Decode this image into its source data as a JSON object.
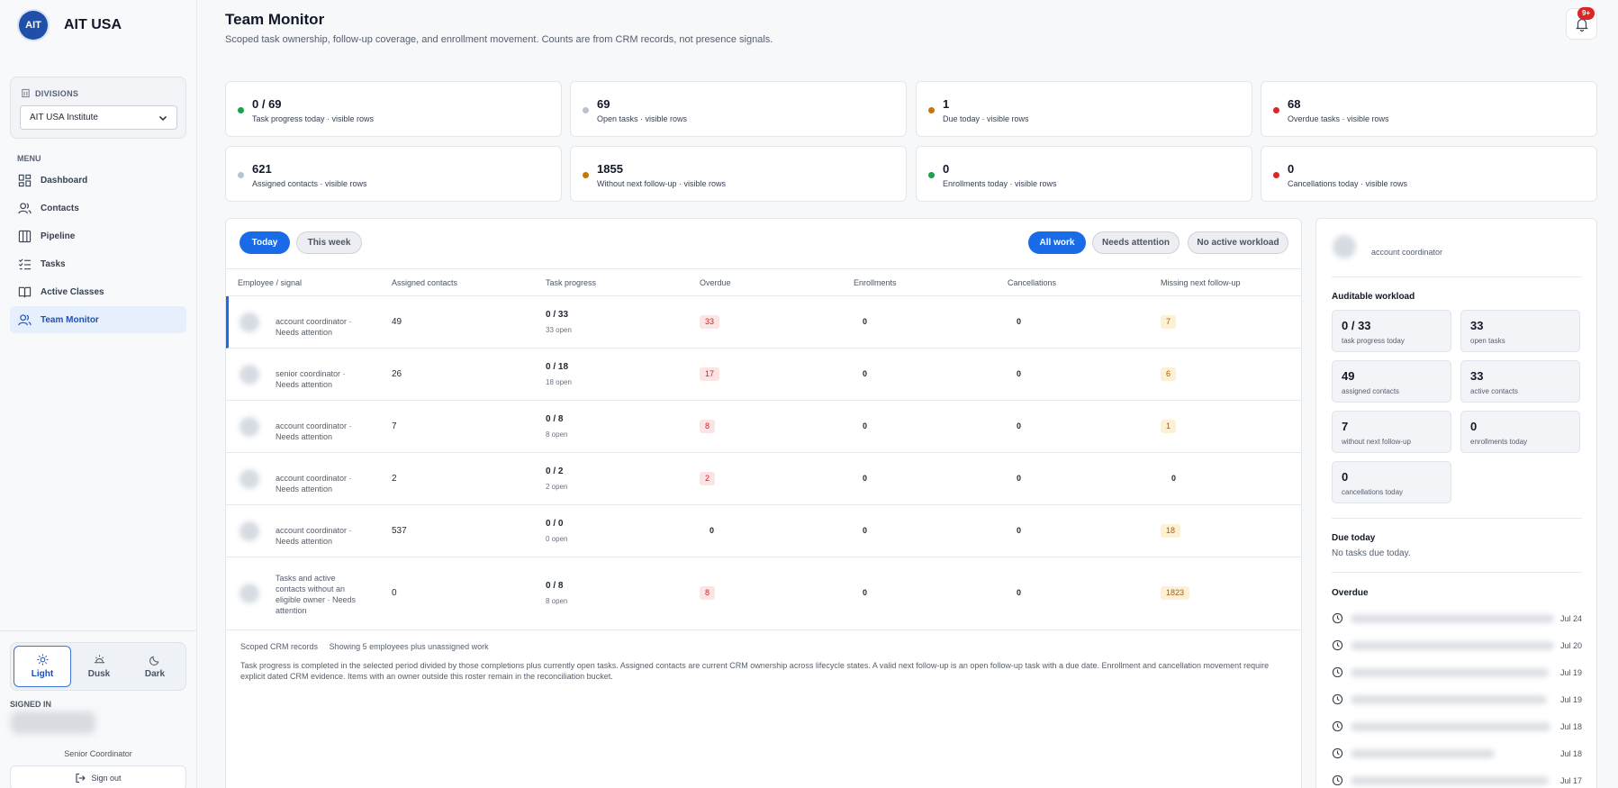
{
  "brand": {
    "logo": "AIT",
    "name": "AIT USA"
  },
  "divisions": {
    "label": "DIVISIONS",
    "selected": "AIT USA Institute"
  },
  "menu": {
    "label": "MENU",
    "items": [
      {
        "label": "Dashboard",
        "icon": "dashboard-icon"
      },
      {
        "label": "Contacts",
        "icon": "contacts-icon"
      },
      {
        "label": "Pipeline",
        "icon": "pipeline-icon"
      },
      {
        "label": "Tasks",
        "icon": "tasks-icon"
      },
      {
        "label": "Active Classes",
        "icon": "book-icon"
      },
      {
        "label": "Team Monitor",
        "icon": "team-icon"
      }
    ]
  },
  "theme": {
    "options": [
      "Light",
      "Dusk",
      "Dark"
    ],
    "selected": "Light"
  },
  "user": {
    "signed_in_label": "SIGNED IN",
    "role": "Senior Coordinator",
    "sign_out": "Sign out"
  },
  "header": {
    "title": "Team Monitor",
    "subtitle": "Scoped task ownership, follow-up coverage, and enrollment movement. Counts are from CRM records, not presence signals.",
    "notifications_badge": "9+"
  },
  "stats": [
    {
      "value": "0 / 69",
      "label": "Task progress today · visible rows",
      "color": "#16a34a"
    },
    {
      "value": "69",
      "label": "Open tasks · visible rows",
      "color": "#b8c2d1"
    },
    {
      "value": "1",
      "label": "Due today · visible rows",
      "color": "#c77700"
    },
    {
      "value": "68",
      "label": "Overdue tasks · visible rows",
      "color": "#dc2626"
    },
    {
      "value": "621",
      "label": "Assigned contacts · visible rows",
      "color": "#b8c2d1"
    },
    {
      "value": "1855",
      "label": "Without next follow-up · visible rows",
      "color": "#c77700"
    },
    {
      "value": "0",
      "label": "Enrollments today · visible rows",
      "color": "#16a34a"
    },
    {
      "value": "0",
      "label": "Cancellations today · visible rows",
      "color": "#dc2626"
    }
  ],
  "filters": {
    "period": [
      "Today",
      "This week"
    ],
    "period_selected": "Today",
    "scope": [
      "All work",
      "Needs attention",
      "No active workload"
    ],
    "scope_selected": "All work"
  },
  "table": {
    "columns": [
      "Employee / signal",
      "Assigned contacts",
      "Task progress",
      "Overdue",
      "Enrollments",
      "Cancellations",
      "Missing next follow-up"
    ],
    "rows": [
      {
        "employee": "account coordinator · Needs attention",
        "assigned": "49",
        "progress": "0 / 33",
        "open": "33 open",
        "overdue": "33",
        "enrollments": "0",
        "cancellations": "0",
        "missing": "7"
      },
      {
        "employee": "senior coordinator · Needs attention",
        "assigned": "26",
        "progress": "0 / 18",
        "open": "18 open",
        "overdue": "17",
        "enrollments": "0",
        "cancellations": "0",
        "missing": "6"
      },
      {
        "employee": "account coordinator · Needs attention",
        "assigned": "7",
        "progress": "0 / 8",
        "open": "8 open",
        "overdue": "8",
        "enrollments": "0",
        "cancellations": "0",
        "missing": "1"
      },
      {
        "employee": "account coordinator · Needs attention",
        "assigned": "2",
        "progress": "0 / 2",
        "open": "2 open",
        "overdue": "2",
        "enrollments": "0",
        "cancellations": "0",
        "missing": "0"
      },
      {
        "employee": "account coordinator · Needs attention",
        "assigned": "537",
        "progress": "0 / 0",
        "open": "0 open",
        "overdue": "0",
        "enrollments": "0",
        "cancellations": "0",
        "missing": "18"
      },
      {
        "employee": "Tasks and active contacts without an eligible owner · Needs attention",
        "assigned": "0",
        "progress": "0 / 8",
        "open": "8 open",
        "overdue": "8",
        "enrollments": "0",
        "cancellations": "0",
        "missing": "1823"
      }
    ],
    "footer_left": "Scoped CRM records",
    "footer_right": "Showing 5 employees plus unassigned work",
    "note": "Task progress is completed in the selected period divided by those completions plus currently open tasks. Assigned contacts are current CRM ownership across lifecycle states. A valid next follow-up is an open follow-up task with a due date. Enrollment and cancellation movement require explicit dated CRM evidence. Items with an owner outside this roster remain in the reconciliation bucket."
  },
  "detail": {
    "role": "account coordinator",
    "workload_title": "Auditable workload",
    "tiles": [
      {
        "value": "0 / 33",
        "label": "task progress today"
      },
      {
        "value": "33",
        "label": "open tasks"
      },
      {
        "value": "49",
        "label": "assigned contacts"
      },
      {
        "value": "33",
        "label": "active contacts"
      },
      {
        "value": "7",
        "label": "without next follow-up"
      },
      {
        "value": "0",
        "label": "enrollments today"
      },
      {
        "value": "0",
        "label": "cancellations today"
      }
    ],
    "due_title": "Due today",
    "due_empty": "No tasks due today.",
    "overdue_title": "Overdue",
    "overdue_dates": [
      "Jul 24",
      "Jul 20",
      "Jul 19",
      "Jul 19",
      "Jul 18",
      "Jul 18",
      "Jul 17"
    ]
  }
}
